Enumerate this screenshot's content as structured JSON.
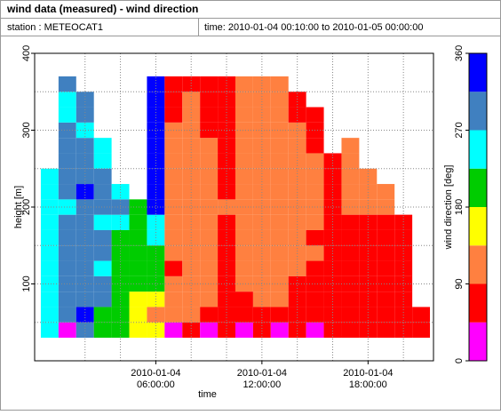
{
  "header": {
    "title": "wind data (measured) - wind direction",
    "station": "station : METEOCAT1",
    "time": "time: 2010-01-04 00:10:00 to 2010-01-05 00:00:00"
  },
  "chart_data": {
    "type": "heatmap",
    "xlabel": "time",
    "ylabel": "height [m]",
    "zlabel": "wind direction [deg]",
    "xlim": [
      "2010-01-03 23:09",
      "2010-01-04 21:42"
    ],
    "xticks": [
      {
        "value": "2010-01-04 06:00",
        "label": "2010-01-04 06:00:00"
      },
      {
        "value": "2010-01-04 12:00",
        "label": "2010-01-04 12:00:00"
      },
      {
        "value": "2010-01-04 18:00",
        "label": "2010-01-04 18:00:00"
      }
    ],
    "xgrid": [
      "2010-01-04 02:00",
      "2010-01-04 04:00",
      "2010-01-04 06:00",
      "2010-01-04 08:00",
      "2010-01-04 10:00",
      "2010-01-04 12:00",
      "2010-01-04 14:00",
      "2010-01-04 16:00",
      "2010-01-04 18:00",
      "2010-01-04 20:00"
    ],
    "ylim": [
      0,
      400
    ],
    "yticks": [
      100,
      200,
      300,
      400
    ],
    "ygrid": [
      50,
      100,
      150,
      200,
      250,
      300,
      350
    ],
    "zlim": [
      0,
      360
    ],
    "zticks": [
      0,
      90,
      180,
      270,
      360
    ],
    "zbins": [
      0,
      45,
      90,
      135,
      180,
      225,
      270,
      315,
      360
    ],
    "colors": [
      "#ff00ff",
      "#ff0000",
      "#ff8040",
      "#ffff00",
      "#00cc00",
      "#00ffff",
      "#4080c0",
      "#0000ff"
    ],
    "x": [
      "2010-01-04 00:00",
      "2010-01-04 01:00",
      "2010-01-04 02:00",
      "2010-01-04 03:00",
      "2010-01-04 04:00",
      "2010-01-04 05:00",
      "2010-01-04 06:00",
      "2010-01-04 07:00",
      "2010-01-04 08:00",
      "2010-01-04 09:00",
      "2010-01-04 10:00",
      "2010-01-04 11:00",
      "2010-01-04 12:00",
      "2010-01-04 13:00",
      "2010-01-04 14:00",
      "2010-01-04 15:00",
      "2010-01-04 16:00",
      "2010-01-04 17:00",
      "2010-01-04 18:00",
      "2010-01-04 19:00",
      "2010-01-04 20:00",
      "2010-01-04 21:00"
    ],
    "y": [
      40,
      60,
      80,
      100,
      120,
      140,
      160,
      180,
      200,
      220,
      240,
      260,
      280,
      300,
      320,
      340,
      360
    ],
    "z": [
      [
        250,
        250,
        250,
        250,
        250,
        250,
        250,
        250,
        250,
        250,
        250,
        null,
        null,
        null,
        null,
        null,
        null
      ],
      [
        20,
        290,
        290,
        290,
        290,
        290,
        290,
        290,
        250,
        290,
        290,
        290,
        290,
        290,
        250,
        250,
        290
      ],
      [
        290,
        340,
        290,
        290,
        290,
        290,
        290,
        290,
        290,
        340,
        290,
        290,
        290,
        250,
        290,
        290,
        null
      ],
      [
        200,
        200,
        290,
        290,
        250,
        290,
        290,
        250,
        290,
        290,
        290,
        250,
        250,
        null,
        null,
        null,
        null
      ],
      [
        200,
        200,
        200,
        200,
        200,
        200,
        200,
        250,
        290,
        250,
        null,
        null,
        null,
        null,
        null,
        null,
        null
      ],
      [
        160,
        160,
        160,
        200,
        200,
        200,
        200,
        200,
        200,
        null,
        null,
        null,
        null,
        null,
        null,
        null,
        null
      ],
      [
        160,
        110,
        160,
        200,
        200,
        200,
        250,
        250,
        340,
        340,
        340,
        340,
        340,
        340,
        340,
        340,
        340
      ],
      [
        20,
        110,
        110,
        110,
        70,
        110,
        110,
        110,
        110,
        110,
        110,
        110,
        110,
        110,
        70,
        70,
        70
      ],
      [
        70,
        110,
        110,
        110,
        110,
        110,
        110,
        110,
        110,
        110,
        110,
        110,
        110,
        110,
        110,
        110,
        70
      ],
      [
        20,
        70,
        110,
        110,
        110,
        110,
        110,
        110,
        110,
        110,
        110,
        110,
        110,
        70,
        70,
        70,
        70
      ],
      [
        70,
        70,
        70,
        70,
        70,
        70,
        70,
        70,
        110,
        70,
        70,
        70,
        70,
        70,
        70,
        70,
        70
      ],
      [
        20,
        70,
        70,
        110,
        110,
        110,
        110,
        110,
        110,
        110,
        110,
        110,
        110,
        110,
        110,
        110,
        110
      ],
      [
        70,
        70,
        110,
        110,
        110,
        110,
        110,
        110,
        110,
        110,
        110,
        110,
        110,
        110,
        110,
        110,
        110
      ],
      [
        20,
        70,
        110,
        110,
        110,
        110,
        110,
        110,
        110,
        110,
        110,
        110,
        110,
        110,
        110,
        110,
        110
      ],
      [
        70,
        70,
        70,
        70,
        110,
        110,
        110,
        110,
        110,
        110,
        110,
        110,
        110,
        110,
        70,
        70,
        null
      ],
      [
        20,
        70,
        70,
        70,
        70,
        110,
        70,
        110,
        110,
        110,
        110,
        110,
        70,
        70,
        70,
        null,
        null
      ],
      [
        70,
        70,
        70,
        70,
        70,
        70,
        70,
        70,
        70,
        70,
        70,
        70,
        null,
        null,
        null,
        null,
        null
      ],
      [
        70,
        70,
        70,
        70,
        70,
        70,
        70,
        70,
        110,
        110,
        110,
        110,
        110,
        null,
        null,
        null,
        null
      ],
      [
        70,
        70,
        70,
        70,
        70,
        70,
        70,
        70,
        110,
        110,
        110,
        null,
        null,
        null,
        null,
        null,
        null
      ],
      [
        70,
        70,
        70,
        70,
        70,
        70,
        70,
        70,
        110,
        110,
        null,
        null,
        null,
        null,
        null,
        null,
        null
      ],
      [
        70,
        70,
        70,
        70,
        70,
        70,
        70,
        70,
        null,
        null,
        null,
        null,
        null,
        null,
        null,
        null,
        null
      ],
      [
        70,
        70,
        null,
        null,
        null,
        null,
        null,
        null,
        null,
        null,
        null,
        null,
        null,
        null,
        null,
        null,
        null
      ]
    ]
  }
}
